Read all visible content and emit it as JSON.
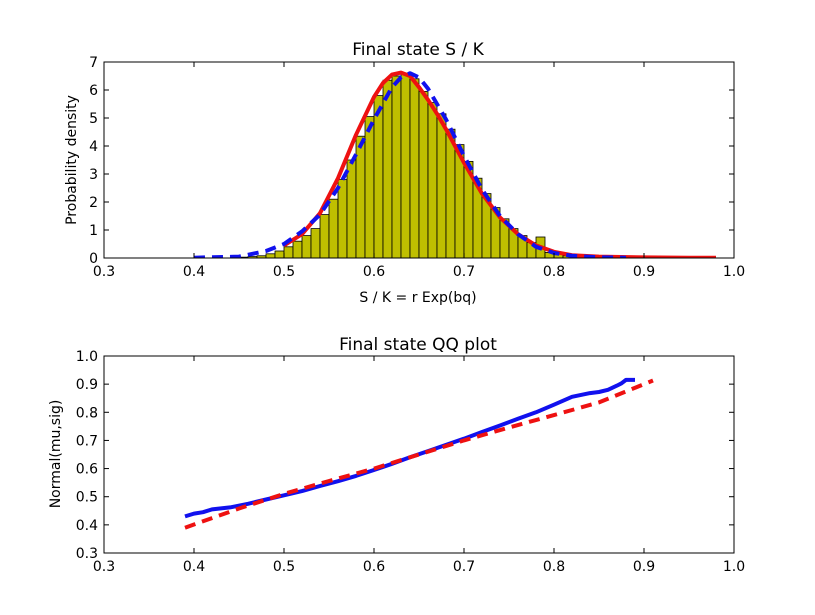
{
  "chart_data": [
    {
      "type": "bar",
      "title": "Final state S / K",
      "xlabel": "S / K = r Exp(bq)",
      "ylabel": "Probability density",
      "xlim": [
        0.3,
        1.0
      ],
      "ylim": [
        0,
        7
      ],
      "x_ticks": [
        "0.3",
        "0.4",
        "0.5",
        "0.6",
        "0.7",
        "0.8",
        "0.9",
        "1.0"
      ],
      "y_ticks": [
        "0",
        "1",
        "2",
        "3",
        "4",
        "5",
        "6",
        "7"
      ],
      "grid": false,
      "histogram": {
        "bin_width": 0.01,
        "color": "#bfbf00",
        "bins": [
          {
            "x": 0.45,
            "v": 0.03
          },
          {
            "x": 0.46,
            "v": 0.05
          },
          {
            "x": 0.47,
            "v": 0.08
          },
          {
            "x": 0.48,
            "v": 0.15
          },
          {
            "x": 0.49,
            "v": 0.25
          },
          {
            "x": 0.5,
            "v": 0.4
          },
          {
            "x": 0.51,
            "v": 0.6
          },
          {
            "x": 0.52,
            "v": 0.8
          },
          {
            "x": 0.53,
            "v": 1.05
          },
          {
            "x": 0.54,
            "v": 1.55
          },
          {
            "x": 0.55,
            "v": 2.1
          },
          {
            "x": 0.56,
            "v": 2.8
          },
          {
            "x": 0.57,
            "v": 3.5
          },
          {
            "x": 0.58,
            "v": 4.35
          },
          {
            "x": 0.59,
            "v": 5.05
          },
          {
            "x": 0.6,
            "v": 5.8
          },
          {
            "x": 0.61,
            "v": 6.35
          },
          {
            "x": 0.62,
            "v": 6.5
          },
          {
            "x": 0.63,
            "v": 6.6
          },
          {
            "x": 0.64,
            "v": 6.4
          },
          {
            "x": 0.65,
            "v": 5.95
          },
          {
            "x": 0.66,
            "v": 5.55
          },
          {
            "x": 0.67,
            "v": 5.15
          },
          {
            "x": 0.68,
            "v": 4.6
          },
          {
            "x": 0.69,
            "v": 4.05
          },
          {
            "x": 0.7,
            "v": 3.45
          },
          {
            "x": 0.71,
            "v": 2.85
          },
          {
            "x": 0.72,
            "v": 2.3
          },
          {
            "x": 0.73,
            "v": 1.8
          },
          {
            "x": 0.74,
            "v": 1.4
          },
          {
            "x": 0.75,
            "v": 1.05
          },
          {
            "x": 0.76,
            "v": 0.8
          },
          {
            "x": 0.77,
            "v": 0.55
          },
          {
            "x": 0.78,
            "v": 0.75
          },
          {
            "x": 0.79,
            "v": 0.2
          },
          {
            "x": 0.8,
            "v": 0.15
          },
          {
            "x": 0.81,
            "v": 0.08
          },
          {
            "x": 0.82,
            "v": 0.05
          }
        ]
      },
      "series": [
        {
          "style": "solid",
          "color": "#ee1111",
          "x": [
            0.5,
            0.52,
            0.54,
            0.56,
            0.58,
            0.6,
            0.61,
            0.62,
            0.63,
            0.64,
            0.65,
            0.66,
            0.67,
            0.68,
            0.7,
            0.72,
            0.74,
            0.76,
            0.78,
            0.8,
            0.82,
            0.85,
            0.9,
            0.95,
            0.98
          ],
          "y": [
            0.45,
            0.85,
            1.6,
            2.85,
            4.4,
            5.75,
            6.25,
            6.55,
            6.62,
            6.5,
            6.1,
            5.65,
            5.15,
            4.6,
            3.4,
            2.3,
            1.45,
            0.85,
            0.45,
            0.22,
            0.1,
            0.05,
            0.02,
            0.01,
            0.01
          ]
        },
        {
          "style": "dashed",
          "color": "#1111ee",
          "x": [
            0.4,
            0.45,
            0.48,
            0.5,
            0.52,
            0.54,
            0.56,
            0.58,
            0.6,
            0.62,
            0.63,
            0.64,
            0.65,
            0.66,
            0.68,
            0.7,
            0.72,
            0.74,
            0.76,
            0.78,
            0.8,
            0.82,
            0.85,
            0.88
          ],
          "y": [
            0.01,
            0.05,
            0.25,
            0.5,
            0.95,
            1.55,
            2.5,
            3.7,
            4.95,
            6.1,
            6.45,
            6.6,
            6.45,
            6.05,
            4.95,
            3.65,
            2.45,
            1.5,
            0.85,
            0.4,
            0.18,
            0.08,
            0.02,
            0.01
          ]
        }
      ]
    },
    {
      "type": "line",
      "title": "Final state QQ plot",
      "xlabel": "",
      "ylabel": "Normal(mu,sig)",
      "xlim": [
        0.3,
        1.0
      ],
      "ylim": [
        0.3,
        1.0
      ],
      "x_ticks": [
        "0.3",
        "0.4",
        "0.5",
        "0.6",
        "0.7",
        "0.8",
        "0.9",
        "1.0"
      ],
      "y_ticks": [
        "0.3",
        "0.4",
        "0.5",
        "0.6",
        "0.7",
        "0.8",
        "0.9",
        "1.0"
      ],
      "grid": false,
      "series": [
        {
          "style": "solid",
          "color": "#1111ee",
          "x": [
            0.39,
            0.4,
            0.41,
            0.42,
            0.44,
            0.46,
            0.48,
            0.5,
            0.52,
            0.54,
            0.56,
            0.58,
            0.6,
            0.62,
            0.64,
            0.66,
            0.68,
            0.7,
            0.72,
            0.74,
            0.76,
            0.78,
            0.8,
            0.82,
            0.84,
            0.85,
            0.86,
            0.87,
            0.875,
            0.88,
            0.89
          ],
          "y": [
            0.43,
            0.44,
            0.445,
            0.455,
            0.462,
            0.475,
            0.49,
            0.505,
            0.52,
            0.538,
            0.555,
            0.574,
            0.595,
            0.617,
            0.64,
            0.662,
            0.684,
            0.706,
            0.73,
            0.753,
            0.777,
            0.8,
            0.827,
            0.855,
            0.868,
            0.872,
            0.88,
            0.895,
            0.903,
            0.915,
            0.915
          ]
        },
        {
          "style": "dashed",
          "color": "#ee1111",
          "x": [
            0.39,
            0.45,
            0.5,
            0.55,
            0.6,
            0.65,
            0.7,
            0.75,
            0.8,
            0.85,
            0.91
          ],
          "y": [
            0.39,
            0.458,
            0.51,
            0.556,
            0.6,
            0.65,
            0.7,
            0.746,
            0.79,
            0.835,
            0.913
          ]
        }
      ]
    }
  ]
}
